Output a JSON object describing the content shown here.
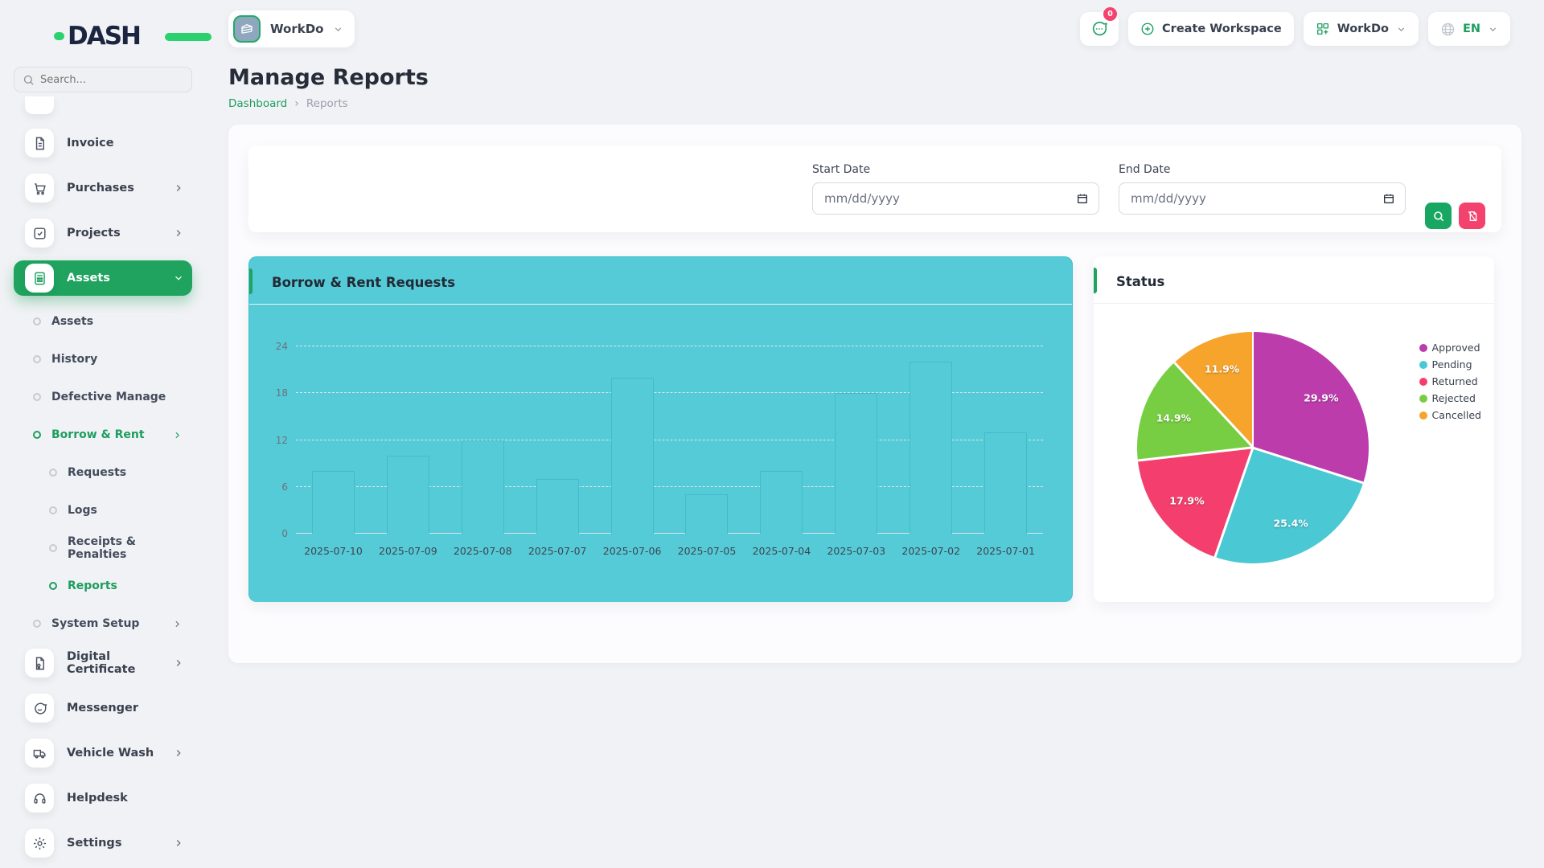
{
  "brand": {
    "name": "DASH"
  },
  "sidebar": {
    "search_placeholder": "Search...",
    "items": [
      {
        "label": "Invoice"
      },
      {
        "label": "Purchases"
      },
      {
        "label": "Projects"
      },
      {
        "label": "Assets"
      },
      {
        "label": "Assets"
      },
      {
        "label": "History"
      },
      {
        "label": "Defective Manage"
      },
      {
        "label": "Borrow & Rent"
      },
      {
        "label": "Requests"
      },
      {
        "label": "Logs"
      },
      {
        "label": "Receipts & Penalties"
      },
      {
        "label": "Reports"
      },
      {
        "label": "System Setup"
      },
      {
        "label": "Digital Certificate"
      },
      {
        "label": "Messenger"
      },
      {
        "label": "Vehicle Wash"
      },
      {
        "label": "Helpdesk"
      },
      {
        "label": "Settings"
      }
    ]
  },
  "header": {
    "workspace_name": "WorkDo",
    "messages_badge": "0",
    "create_workspace_label": "Create Workspace",
    "workspace_switcher_label": "WorkDo",
    "language": "EN"
  },
  "page": {
    "title": "Manage Reports",
    "breadcrumb": {
      "home": "Dashboard",
      "current": "Reports"
    }
  },
  "filters": {
    "start_date_label": "Start Date",
    "end_date_label": "End Date",
    "start_date_value": "",
    "end_date_value": "",
    "date_placeholder": "mm/dd/yyyy"
  },
  "colors": {
    "brand_green": "#1d9e5f",
    "active_green": "#1fa35f",
    "logo_green": "#2bd16e",
    "accent_pink": "#f4426f",
    "bar_teal": "#55cbd7"
  },
  "chart_data": [
    {
      "type": "bar",
      "title": "Borrow & Rent Requests",
      "categories": [
        "2025-07-10",
        "2025-07-09",
        "2025-07-08",
        "2025-07-07",
        "2025-07-06",
        "2025-07-05",
        "2025-07-04",
        "2025-07-03",
        "2025-07-02",
        "2025-07-01"
      ],
      "values": [
        8,
        10,
        12,
        7,
        20,
        5,
        8,
        18,
        22,
        13
      ],
      "xlabel": "",
      "ylabel": "",
      "ylim": [
        0,
        24
      ],
      "yticks": [
        0,
        6,
        12,
        18,
        24
      ],
      "grid": "dashed-horizontal",
      "bar_color": "#55cbd7",
      "legend_position": "none"
    },
    {
      "type": "pie",
      "title": "Status",
      "slices": [
        {
          "label": "Approved",
          "value": 29.9,
          "color": "#bd3cac"
        },
        {
          "label": "Pending",
          "value": 25.4,
          "color": "#4ac8d4"
        },
        {
          "label": "Returned",
          "value": 17.9,
          "color": "#f43f6e"
        },
        {
          "label": "Rejected",
          "value": 14.9,
          "color": "#77ce43"
        },
        {
          "label": "Cancelled",
          "value": 11.9,
          "color": "#f6a42c"
        }
      ],
      "label_format": "percent",
      "legend_position": "right"
    }
  ]
}
